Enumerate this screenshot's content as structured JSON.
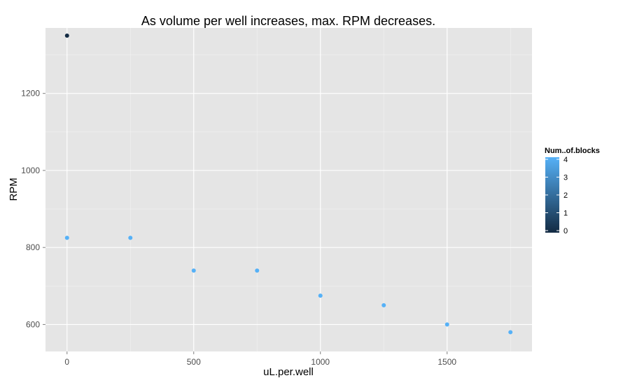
{
  "chart_data": {
    "type": "scatter",
    "title": "As volume per well increases, max. RPM decreases.",
    "xlabel": "uL.per.well",
    "ylabel": "RPM",
    "xlim": [
      -85,
      1835
    ],
    "ylim": [
      530,
      1370
    ],
    "x_ticks": [
      0,
      500,
      1000,
      1500
    ],
    "y_ticks": [
      600,
      800,
      1000,
      1200
    ],
    "grid": true,
    "legend_position": "right",
    "color_scale": {
      "title": "Num..of.blocks",
      "min": 0,
      "max": 4,
      "ticks": [
        0,
        1,
        2,
        3,
        4
      ],
      "low_color": "#132b43",
      "high_color": "#56b1f7"
    },
    "points": [
      {
        "x": 0,
        "y": 1350,
        "blocks": 0
      },
      {
        "x": 0,
        "y": 825,
        "blocks": 4
      },
      {
        "x": 250,
        "y": 825,
        "blocks": 4
      },
      {
        "x": 500,
        "y": 740,
        "blocks": 4
      },
      {
        "x": 750,
        "y": 740,
        "blocks": 4
      },
      {
        "x": 1000,
        "y": 675,
        "blocks": 4
      },
      {
        "x": 1250,
        "y": 650,
        "blocks": 4
      },
      {
        "x": 1500,
        "y": 600,
        "blocks": 4
      },
      {
        "x": 1750,
        "y": 580,
        "blocks": 4
      }
    ]
  },
  "colors": {
    "panel_background": "#e5e5e5",
    "grid_major": "#ffffff",
    "grid_minor": "#f2f2f2"
  }
}
